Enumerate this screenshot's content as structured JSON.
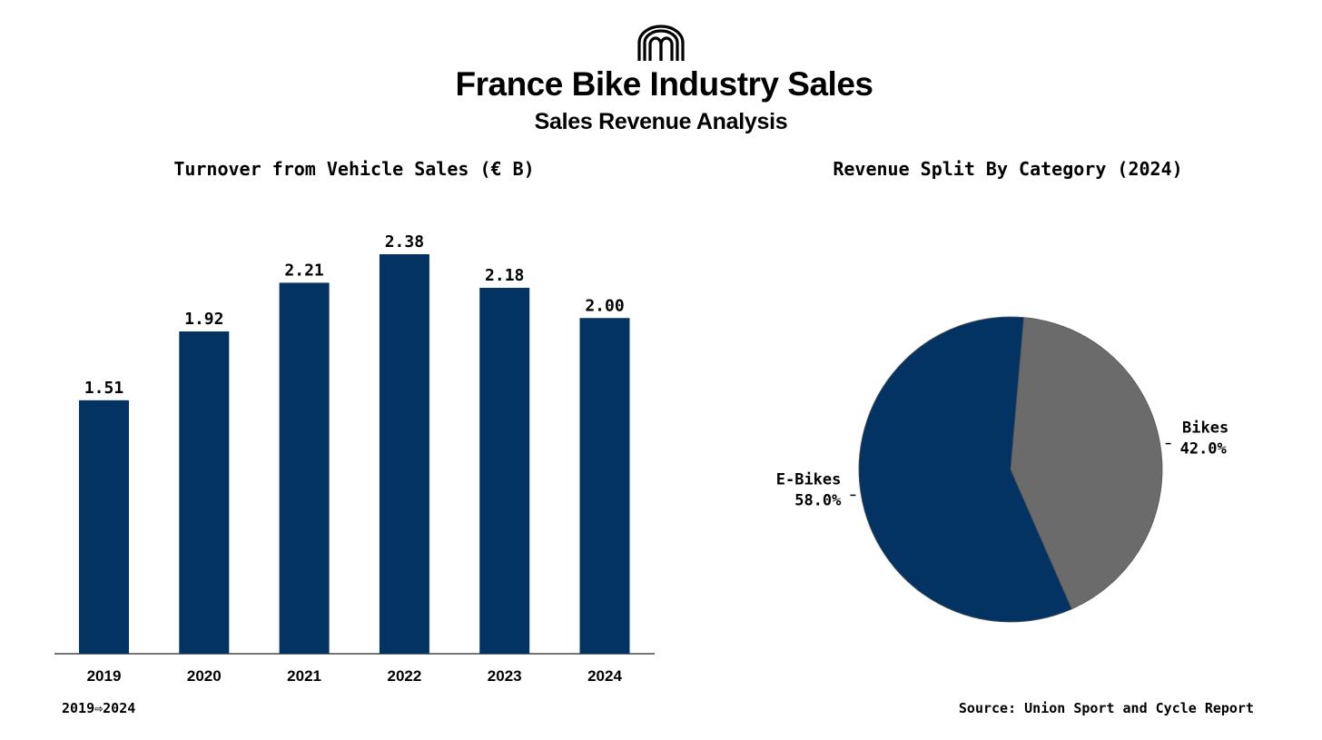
{
  "header": {
    "logo_icon": "arches-logo-icon",
    "title": "France Bike Industry Sales",
    "subtitle": "Sales Revenue Analysis"
  },
  "footer": {
    "range": "2019⇨2024",
    "source": "Source: Union Sport and Cycle Report"
  },
  "chart_data": [
    {
      "type": "bar",
      "title": "Turnover from Vehicle Sales (€ B)",
      "categories": [
        "2019",
        "2020",
        "2021",
        "2022",
        "2023",
        "2024"
      ],
      "values": [
        1.51,
        1.92,
        2.21,
        2.38,
        2.18,
        2.0
      ],
      "value_labels": [
        "1.51",
        "1.92",
        "2.21",
        "2.38",
        "2.18",
        "2.00"
      ],
      "ylim": [
        0,
        2.38
      ],
      "color": "#033363",
      "grid": false,
      "legend": "none"
    },
    {
      "type": "pie",
      "title": "Revenue Split By Category (2024)",
      "slices": [
        {
          "label": "Bikes",
          "value": 42.0,
          "pct_label": "42.0%",
          "color": "#6b6b6b"
        },
        {
          "label": "E-Bikes",
          "value": 58.0,
          "pct_label": "58.0%",
          "color": "#033363"
        }
      ],
      "legend": "none"
    }
  ]
}
